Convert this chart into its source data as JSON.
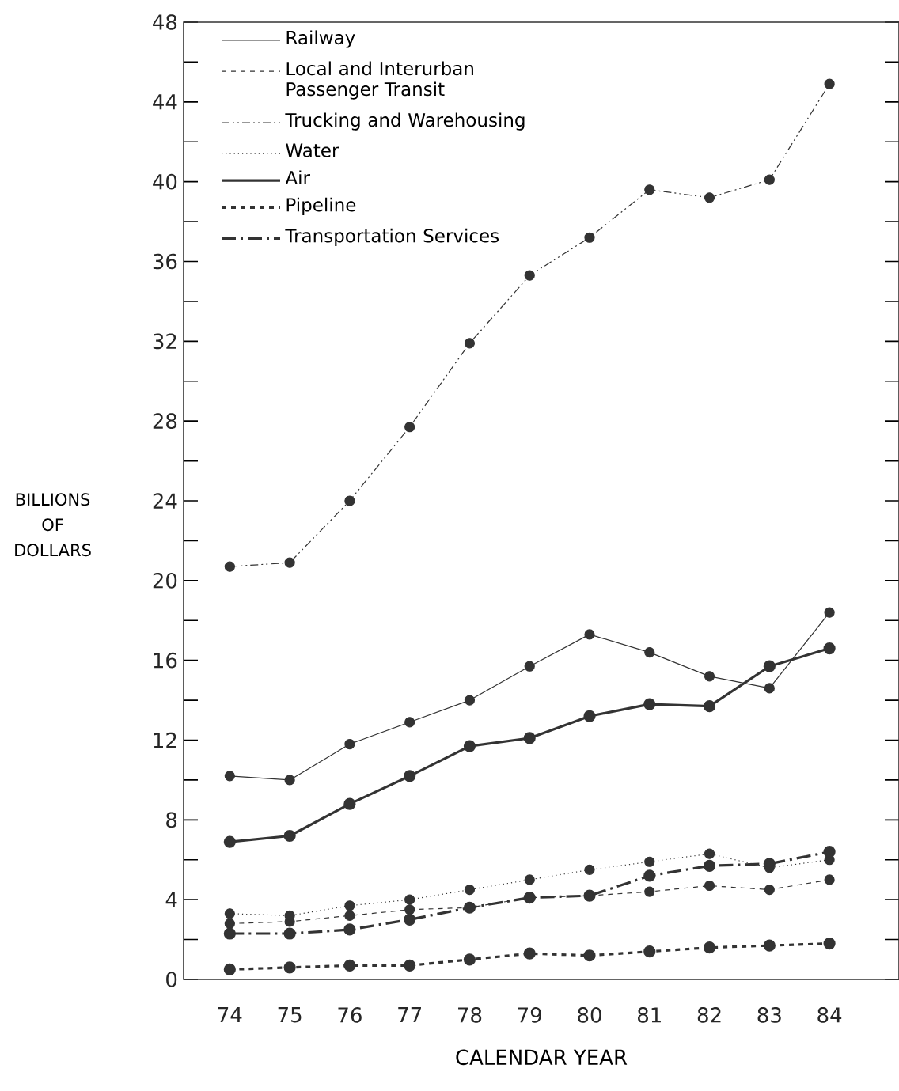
{
  "chart_data": {
    "type": "line",
    "xlabel": "CALENDAR YEAR",
    "ylabel": "BILLIONS OF DOLLARS",
    "categories": [
      "74",
      "75",
      "76",
      "77",
      "78",
      "79",
      "80",
      "81",
      "82",
      "83",
      "84"
    ],
    "ylim": [
      0,
      48
    ],
    "yticks": [
      0,
      4,
      8,
      12,
      16,
      20,
      24,
      28,
      32,
      36,
      40,
      44,
      48
    ],
    "grid": false,
    "legend": "top left",
    "marker": "circle",
    "series": [
      {
        "name": "Railway",
        "color": "#333333",
        "line_style": "solid",
        "values": [
          10.2,
          10.0,
          11.8,
          12.9,
          14.0,
          15.7,
          17.3,
          16.4,
          15.2,
          14.6,
          18.4
        ]
      },
      {
        "name": "Local and Interurban Passenger Transit",
        "color": "#333333",
        "line_style": "dashed",
        "values": [
          2.8,
          2.9,
          3.2,
          3.5,
          3.6,
          4.1,
          4.2,
          4.4,
          4.7,
          4.5,
          5.0
        ]
      },
      {
        "name": "Trucking and Warehousing",
        "color": "#333333",
        "line_style": "dashdotdot",
        "values": [
          20.7,
          20.9,
          24.0,
          27.7,
          31.9,
          35.3,
          37.2,
          39.6,
          39.2,
          40.1,
          44.9
        ]
      },
      {
        "name": "Water",
        "color": "#333333",
        "line_style": "dotted",
        "values": [
          3.3,
          3.2,
          3.7,
          4.0,
          4.5,
          5.0,
          5.5,
          5.9,
          6.3,
          5.6,
          6.0
        ]
      },
      {
        "name": "Air",
        "color": "#333333",
        "line_style": "solid",
        "values": [
          6.9,
          7.2,
          8.8,
          10.2,
          11.7,
          12.1,
          13.2,
          13.8,
          13.7,
          15.7,
          16.6
        ]
      },
      {
        "name": "Pipeline",
        "color": "#333333",
        "line_style": "dashed",
        "values": [
          0.5,
          0.6,
          0.7,
          0.7,
          1.0,
          1.3,
          1.2,
          1.4,
          1.6,
          1.7,
          1.8
        ]
      },
      {
        "name": "Transportation Services",
        "color": "#333333",
        "line_style": "dashdot",
        "values": [
          2.3,
          2.3,
          2.5,
          3.0,
          3.6,
          4.1,
          4.2,
          5.2,
          5.7,
          5.8,
          6.4
        ]
      }
    ]
  }
}
